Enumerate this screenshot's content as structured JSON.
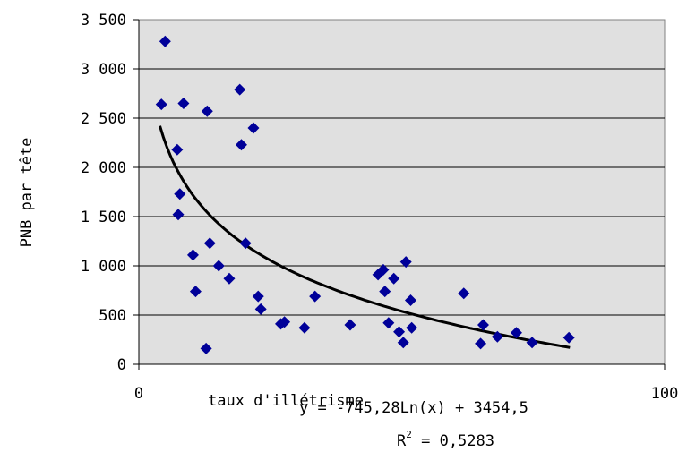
{
  "chart_data": {
    "type": "scatter",
    "title": "",
    "xlabel": "taux d'illétrisme",
    "ylabel": "PNB par tête",
    "xlim": [
      0,
      100
    ],
    "ylim": [
      0,
      3500
    ],
    "x_ticks": [
      {
        "value": 0,
        "label": "0"
      },
      {
        "value": 100,
        "label": "100"
      }
    ],
    "y_ticks": [
      {
        "value": 0,
        "label": "0"
      },
      {
        "value": 500,
        "label": "500"
      },
      {
        "value": 1000,
        "label": "1 000"
      },
      {
        "value": 1500,
        "label": "1 500"
      },
      {
        "value": 2000,
        "label": "2 000"
      },
      {
        "value": 2500,
        "label": "2 500"
      },
      {
        "value": 3000,
        "label": "3 000"
      },
      {
        "value": 3500,
        "label": "3 500"
      }
    ],
    "grid": {
      "horizontal": true,
      "vertical": false
    },
    "plot_background": "#e0e0e0",
    "marker": {
      "shape": "diamond",
      "color": "#000099"
    },
    "trendline": {
      "type": "logarithmic",
      "a": -745.28,
      "b": 3454.5,
      "x_from": 4,
      "x_to": 82,
      "color": "#000000"
    },
    "equation": "y = -745,28Ln(x) + 3454,5",
    "r_squared_label": "R",
    "r_squared_exp": "2",
    "r_squared_value": " = 0,5283",
    "points": [
      [
        4.3,
        2640
      ],
      [
        5.0,
        3280
      ],
      [
        7.3,
        2180
      ],
      [
        7.5,
        1520
      ],
      [
        7.8,
        1730
      ],
      [
        8.5,
        2650
      ],
      [
        10.3,
        1110
      ],
      [
        10.8,
        740
      ],
      [
        12.8,
        160
      ],
      [
        13.0,
        2570
      ],
      [
        13.5,
        1230
      ],
      [
        15.2,
        1000
      ],
      [
        17.2,
        870
      ],
      [
        19.2,
        2790
      ],
      [
        19.5,
        2230
      ],
      [
        20.3,
        1230
      ],
      [
        21.8,
        2400
      ],
      [
        22.7,
        690
      ],
      [
        23.2,
        560
      ],
      [
        27.0,
        410
      ],
      [
        27.7,
        430
      ],
      [
        31.5,
        370
      ],
      [
        33.5,
        690
      ],
      [
        40.2,
        400
      ],
      [
        45.5,
        910
      ],
      [
        46.5,
        960
      ],
      [
        46.8,
        740
      ],
      [
        47.5,
        420
      ],
      [
        48.5,
        870
      ],
      [
        49.5,
        330
      ],
      [
        50.3,
        220
      ],
      [
        50.8,
        1040
      ],
      [
        51.7,
        650
      ],
      [
        51.9,
        370
      ],
      [
        61.8,
        720
      ],
      [
        65.0,
        210
      ],
      [
        65.5,
        400
      ],
      [
        68.2,
        280
      ],
      [
        71.8,
        320
      ],
      [
        74.8,
        220
      ],
      [
        81.8,
        270
      ]
    ]
  }
}
